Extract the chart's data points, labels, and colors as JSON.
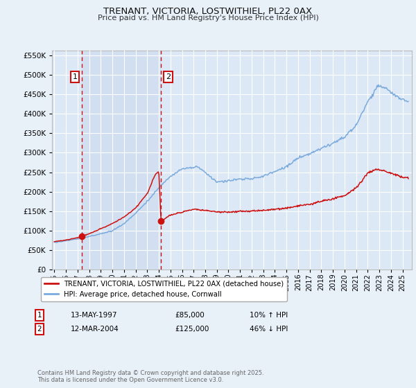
{
  "title": "TRENANT, VICTORIA, LOSTWITHIEL, PL22 0AX",
  "subtitle": "Price paid vs. HM Land Registry's House Price Index (HPI)",
  "background_color": "#e8f0f8",
  "plot_bg_color": "#dce8f5",
  "shade_color": "#c8d8ee",
  "grid_color": "#ffffff",
  "sale1": {
    "date_num": 1997.37,
    "price": 85000,
    "label": "1",
    "pct": "10% ↑ HPI",
    "date_str": "13-MAY-1997"
  },
  "sale2": {
    "date_num": 2004.19,
    "price": 125000,
    "label": "2",
    "pct": "46% ↓ HPI",
    "date_str": "12-MAR-2004"
  },
  "hpi_line_color": "#7aaadd",
  "price_line_color": "#cc1111",
  "sale_marker_color": "#cc1111",
  "vline_color": "#cc1111",
  "annotation_box_color": "#cc1111",
  "ylim": [
    0,
    562500
  ],
  "xlim": [
    1994.8,
    2025.8
  ],
  "yticks": [
    0,
    50000,
    100000,
    150000,
    200000,
    250000,
    300000,
    350000,
    400000,
    450000,
    500000,
    550000
  ],
  "footer": "Contains HM Land Registry data © Crown copyright and database right 2025.\nThis data is licensed under the Open Government Licence v3.0.",
  "legend_label1": "TRENANT, VICTORIA, LOSTWITHIEL, PL22 0AX (detached house)",
  "legend_label2": "HPI: Average price, detached house, Cornwall"
}
